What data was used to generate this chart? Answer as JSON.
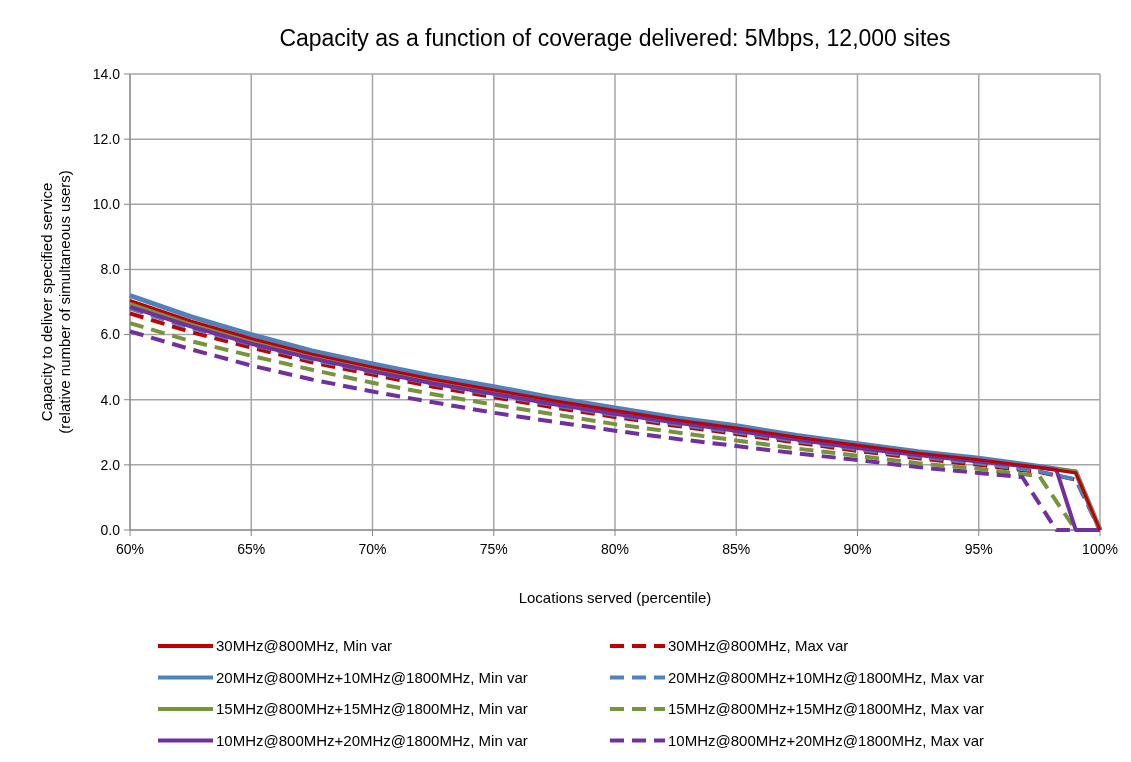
{
  "chart_data": {
    "type": "line",
    "title": "Capacity as a function of coverage delivered: 5Mbps, 12,000 sites",
    "xlabel": "Locations served (percentile)",
    "ylabel": "Capacity to deliver specified service\n(relative number of simultaneous users)",
    "xlim": [
      60,
      100
    ],
    "xticks": [
      {
        "value": 60,
        "label": "60%"
      },
      {
        "value": 65,
        "label": "65%"
      },
      {
        "value": 70,
        "label": "70%"
      },
      {
        "value": 75,
        "label": "75%"
      },
      {
        "value": 80,
        "label": "80%"
      },
      {
        "value": 85,
        "label": "85%"
      },
      {
        "value": 90,
        "label": "90%"
      },
      {
        "value": 95,
        "label": "95%"
      },
      {
        "value": 100,
        "label": "100%"
      }
    ],
    "ylim": [
      0,
      14
    ],
    "yticks": [
      {
        "value": 0,
        "label": "0.0"
      },
      {
        "value": 2,
        "label": "2.0"
      },
      {
        "value": 4,
        "label": "4.0"
      },
      {
        "value": 6,
        "label": "6.0"
      },
      {
        "value": 8,
        "label": "8.0"
      },
      {
        "value": 10,
        "label": "10.0"
      },
      {
        "value": 12,
        "label": "12.0"
      },
      {
        "value": 14,
        "label": "14.0"
      }
    ],
    "grid": true,
    "legend": "bottom",
    "series": [
      {
        "name": "30MHz@800MHz, Min var",
        "color": "#c00000",
        "line_style": "solid",
        "x": [
          60,
          62.5,
          65,
          67.5,
          70,
          72.5,
          75,
          77.5,
          80,
          82.5,
          85,
          87.5,
          90,
          92.5,
          95,
          97.5,
          99,
          100
        ],
        "values": [
          7.05,
          6.42,
          5.88,
          5.4,
          5.0,
          4.63,
          4.3,
          3.97,
          3.67,
          3.38,
          3.13,
          2.85,
          2.6,
          2.36,
          2.16,
          1.92,
          1.76,
          0
        ]
      },
      {
        "name": "30MHz@800MHz, Max var",
        "color": "#c00000",
        "line_style": "dashed",
        "x": [
          60,
          62.5,
          65,
          67.5,
          70,
          72.5,
          75,
          77.5,
          80,
          82.5,
          85,
          87.5,
          90,
          92.5,
          95,
          97.5,
          99,
          100
        ],
        "values": [
          6.65,
          6.08,
          5.6,
          5.15,
          4.77,
          4.4,
          4.08,
          3.76,
          3.47,
          3.2,
          2.95,
          2.68,
          2.43,
          2.2,
          2.0,
          1.78,
          1.55,
          0
        ]
      },
      {
        "name": "20MHz@800MHz+10MHz@1800MHz, Min var",
        "color": "#4f81bd",
        "line_style": "solid",
        "x": [
          60,
          62.5,
          65,
          67.5,
          70,
          72.5,
          75,
          77.5,
          80,
          82.5,
          85,
          87.5,
          90,
          92.5,
          95,
          97.5,
          99,
          100
        ],
        "values": [
          7.2,
          6.55,
          6.0,
          5.5,
          5.1,
          4.72,
          4.4,
          4.05,
          3.75,
          3.45,
          3.2,
          2.9,
          2.65,
          2.4,
          2.2,
          1.95,
          1.78,
          0
        ]
      },
      {
        "name": "20MHz@800MHz+10MHz@1800MHz, Max var",
        "color": "#4f81bd",
        "line_style": "dashed",
        "x": [
          60,
          62.5,
          65,
          67.5,
          70,
          72.5,
          75,
          77.5,
          80,
          82.5,
          85,
          87.5,
          90,
          92.5,
          95,
          97.5,
          99,
          100
        ],
        "values": [
          6.8,
          6.2,
          5.7,
          5.23,
          4.85,
          4.48,
          4.15,
          3.83,
          3.53,
          3.25,
          3.0,
          2.73,
          2.48,
          2.25,
          2.05,
          1.8,
          1.55,
          0
        ]
      },
      {
        "name": "15MHz@800MHz+15MHz@1800MHz, Min var",
        "color": "#77933c",
        "line_style": "solid",
        "x": [
          60,
          62.5,
          65,
          67.5,
          70,
          72.5,
          75,
          77.5,
          80,
          82.5,
          85,
          87.5,
          90,
          92.5,
          95,
          97.5,
          99,
          100
        ],
        "values": [
          6.95,
          6.35,
          5.82,
          5.35,
          4.95,
          4.58,
          4.25,
          3.93,
          3.63,
          3.35,
          3.1,
          2.82,
          2.57,
          2.33,
          2.13,
          1.92,
          1.8,
          0
        ]
      },
      {
        "name": "15MHz@800MHz+15MHz@1800MHz, Max var",
        "color": "#77933c",
        "line_style": "dashed",
        "x": [
          60,
          62.5,
          65,
          67.5,
          70,
          72.5,
          75,
          77.5,
          80,
          82.5,
          85,
          87.5,
          90,
          92.5,
          95,
          97.5,
          99,
          100
        ],
        "values": [
          6.35,
          5.8,
          5.35,
          4.92,
          4.52,
          4.17,
          3.85,
          3.55,
          3.25,
          3.0,
          2.75,
          2.5,
          2.28,
          2.05,
          1.88,
          1.65,
          0,
          0
        ]
      },
      {
        "name": "10MHz@800MHz+20MHz@1800MHz, Min var",
        "color": "#7030a0",
        "line_style": "solid",
        "x": [
          60,
          62.5,
          65,
          67.5,
          70,
          72.5,
          75,
          77.5,
          80,
          82.5,
          85,
          87.5,
          90,
          92.5,
          95,
          97.5,
          98.2,
          99,
          100
        ],
        "values": [
          6.85,
          6.25,
          5.72,
          5.27,
          4.87,
          4.5,
          4.18,
          3.86,
          3.57,
          3.3,
          3.05,
          2.78,
          2.52,
          2.3,
          2.1,
          1.92,
          1.85,
          0,
          0
        ]
      },
      {
        "name": "10MHz@800MHz+20MHz@1800MHz, Max var",
        "color": "#7030a0",
        "line_style": "dashed",
        "x": [
          60,
          62.5,
          65,
          67.5,
          70,
          72.5,
          75,
          77.5,
          80,
          82.5,
          85,
          87.5,
          90,
          92.5,
          95,
          96.8,
          98.2,
          100
        ],
        "values": [
          6.1,
          5.55,
          5.05,
          4.62,
          4.25,
          3.92,
          3.6,
          3.32,
          3.05,
          2.8,
          2.58,
          2.35,
          2.15,
          1.93,
          1.75,
          1.62,
          0,
          0
        ]
      }
    ]
  }
}
